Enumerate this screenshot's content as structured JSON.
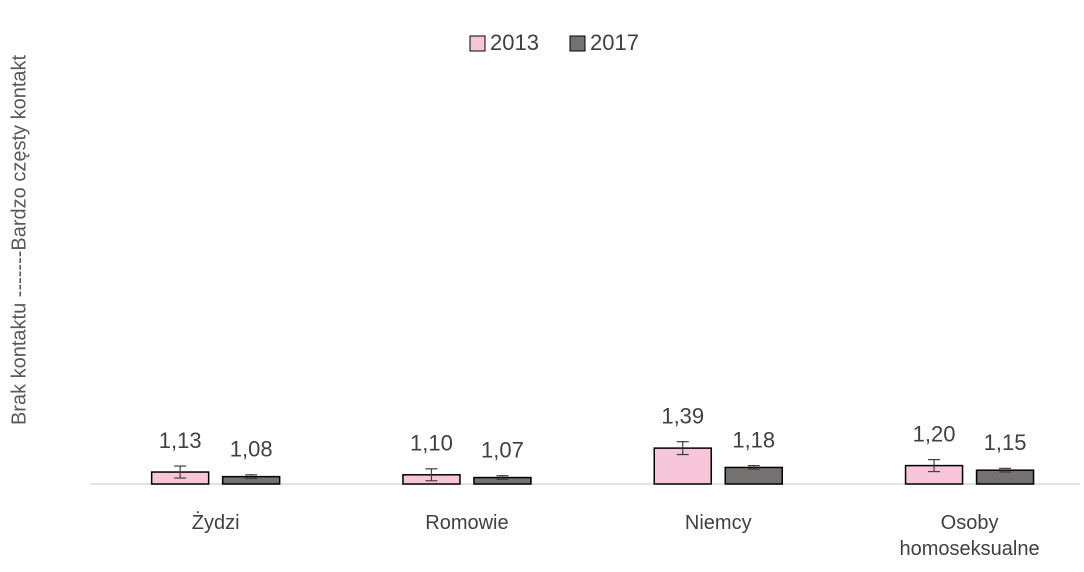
{
  "chart_data": {
    "type": "bar",
    "y_label": "Brak kontaktu -------Bardzo częsty kontakt",
    "categories": [
      "Żydzi",
      "Romowie",
      "Niemcy",
      "Osoby homoseksualne"
    ],
    "series": [
      {
        "name": "2013",
        "color": "#f7c6d9",
        "values": [
          1.13,
          1.1,
          1.39,
          1.2
        ],
        "value_labels": [
          "1,13",
          "1,10",
          "1,39",
          "1,20"
        ],
        "errors": [
          0.065,
          0.065,
          0.07,
          0.065
        ]
      },
      {
        "name": "2017",
        "color": "#767171",
        "values": [
          1.08,
          1.07,
          1.18,
          1.15
        ],
        "value_labels": [
          "1,08",
          "1,07",
          "1,18",
          "1,15"
        ],
        "errors": [
          0.02,
          0.02,
          0.02,
          0.02
        ]
      }
    ],
    "ylim": [
      1,
      6
    ],
    "legend": "top"
  }
}
